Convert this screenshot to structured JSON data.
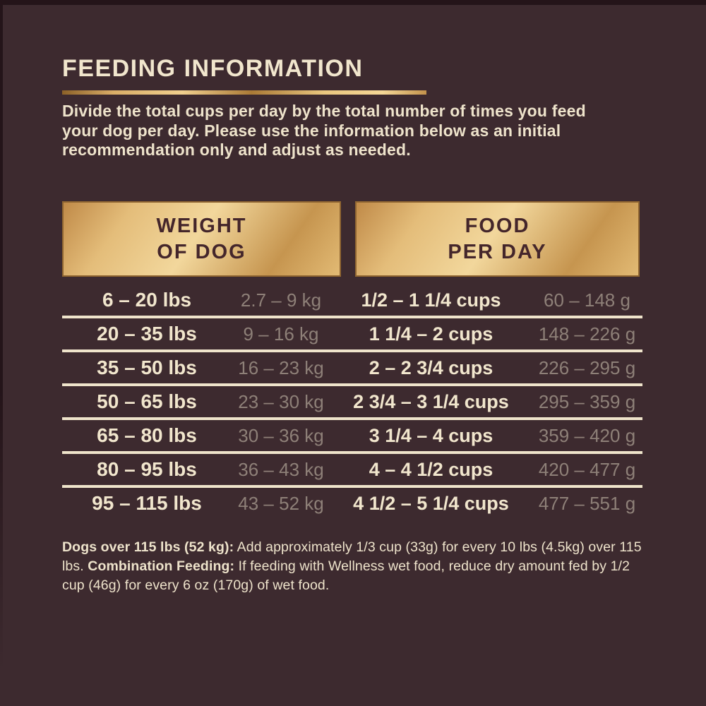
{
  "page": {
    "title": "FEEDING INFORMATION",
    "intro": "Divide the total cups per day by the total number of times you feed your dog per day. Please use the information below as an initial recommendation only and adjust as needed."
  },
  "colors": {
    "background": "#3d2a2f",
    "edge": "#241419",
    "cream_text": "#f1e6cd",
    "muted_metric_text": "#8e8078",
    "gold_light": "#f2d79c",
    "gold_dark": "#c08a48",
    "header_box_text": "#44262b"
  },
  "table": {
    "headers": [
      {
        "line1": "WEIGHT",
        "line2": "OF DOG"
      },
      {
        "line1": "FOOD",
        "line2": "PER DAY"
      }
    ],
    "rows": [
      {
        "lbs": "6 – 20 lbs",
        "kg": "2.7 – 9 kg",
        "cups": "1/2 – 1 1/4 cups",
        "grams": "60 – 148 g"
      },
      {
        "lbs": "20 – 35 lbs",
        "kg": "9 – 16 kg",
        "cups": "1 1/4 – 2 cups",
        "grams": "148 – 226 g"
      },
      {
        "lbs": "35 – 50 lbs",
        "kg": "16 – 23 kg",
        "cups": "2 – 2 3/4 cups",
        "grams": "226 – 295 g"
      },
      {
        "lbs": "50 – 65 lbs",
        "kg": "23 – 30 kg",
        "cups": "2 3/4 – 3 1/4 cups",
        "grams": "295 – 359 g"
      },
      {
        "lbs": "65 – 80 lbs",
        "kg": "30 – 36 kg",
        "cups": "3 1/4 – 4 cups",
        "grams": "359 – 420 g"
      },
      {
        "lbs": "80 – 95 lbs",
        "kg": "36 – 43 kg",
        "cups": "4 – 4 1/2 cups",
        "grams": "420 – 477 g"
      },
      {
        "lbs": "95 – 115 lbs",
        "kg": "43 – 52 kg",
        "cups": "4 1/2 – 5 1/4 cups",
        "grams": "477 – 551 g"
      }
    ]
  },
  "footer": {
    "segments": [
      {
        "text": "Dogs over 115 lbs (52 kg):"
      },
      {
        "text": " Add approximately 1/3 cup (33g) for every 10 lbs (4.5kg) over 115 lbs. "
      },
      {
        "text": "Combination Feeding:"
      },
      {
        "text": " If feeding with Wellness wet food, reduce dry amount fed by 1/2 cup (46g) for every 6 oz (170g) of wet food."
      }
    ]
  }
}
